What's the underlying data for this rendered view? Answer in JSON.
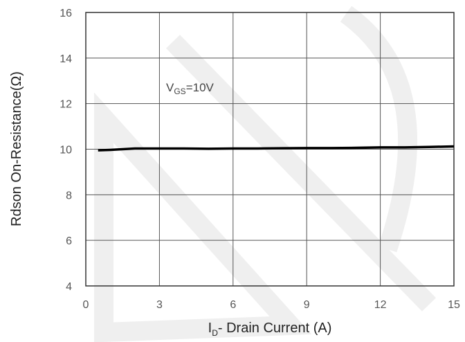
{
  "chart_data": {
    "type": "line",
    "y_label": "Rdson On-Resistance(Ω)",
    "x_label": {
      "main": "I",
      "sub": "D",
      "rest": "- Drain Current (A)"
    },
    "annotation": {
      "main": "V",
      "sub": "GS",
      "rest": "=10V"
    },
    "x": [
      0.5,
      1,
      2,
      3,
      4,
      5,
      6,
      7,
      8,
      9,
      10,
      11,
      12,
      13,
      14,
      15
    ],
    "series": [
      {
        "color": "#000000",
        "values": [
          9.95,
          9.97,
          10.03,
          10.03,
          10.03,
          10.02,
          10.03,
          10.03,
          10.04,
          10.05,
          10.05,
          10.06,
          10.08,
          10.08,
          10.1,
          10.12
        ]
      }
    ],
    "xlim": [
      0,
      15
    ],
    "ylim": [
      4,
      16
    ],
    "xticks": [
      0,
      3,
      6,
      9,
      12,
      15
    ],
    "yticks": [
      4,
      6,
      8,
      10,
      12,
      14,
      16
    ],
    "grid": true
  }
}
